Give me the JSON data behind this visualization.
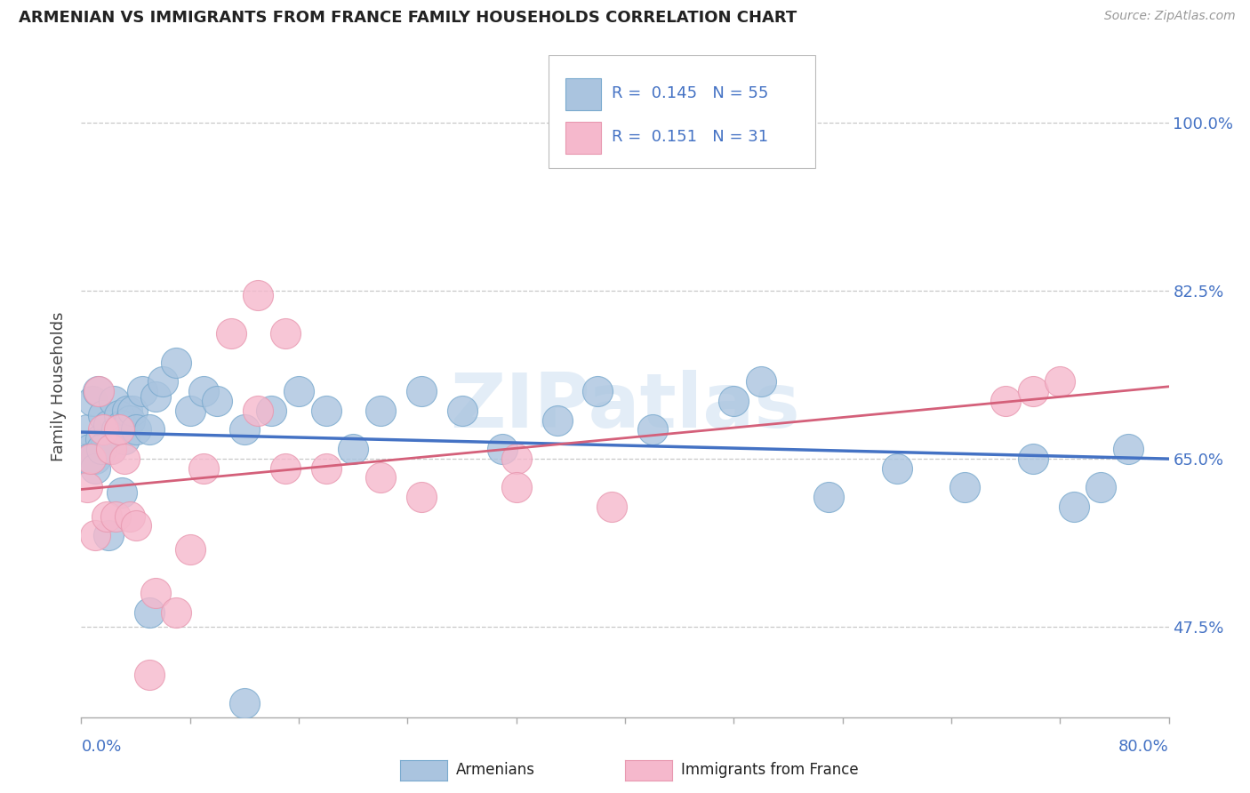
{
  "title": "ARMENIAN VS IMMIGRANTS FROM FRANCE FAMILY HOUSEHOLDS CORRELATION CHART",
  "source": "Source: ZipAtlas.com",
  "ylabel": "Family Households",
  "ytick_values": [
    0.475,
    0.65,
    0.825,
    1.0
  ],
  "ytick_labels": [
    "47.5%",
    "65.0%",
    "82.5%",
    "100.0%"
  ],
  "xlim": [
    0.0,
    0.8
  ],
  "ylim": [
    0.38,
    1.07
  ],
  "bottom_legend1": "Armenians",
  "bottom_legend2": "Immigrants from France",
  "color_arm_fill": "#aac4df",
  "color_arm_edge": "#7aaace",
  "color_fra_fill": "#f5b8cc",
  "color_fra_edge": "#e898b0",
  "color_trendline_arm": "#4472c4",
  "color_trendline_fra": "#d4607a",
  "color_r_n": "#4472c4",
  "color_title": "#222222",
  "color_source": "#999999",
  "color_ylabel": "#444444",
  "color_ytick_right": "#4472c4",
  "color_xtick_label": "#4472c4",
  "color_grid": "#c8c8c8",
  "color_bg": "#ffffff",
  "arm_x": [
    0.004,
    0.006,
    0.008,
    0.01,
    0.012,
    0.014,
    0.016,
    0.018,
    0.02,
    0.022,
    0.024,
    0.026,
    0.028,
    0.03,
    0.032,
    0.034,
    0.036,
    0.038,
    0.04,
    0.045,
    0.05,
    0.055,
    0.06,
    0.07,
    0.08,
    0.09,
    0.1,
    0.12,
    0.14,
    0.16,
    0.18,
    0.2,
    0.22,
    0.25,
    0.28,
    0.31,
    0.35,
    0.38,
    0.42,
    0.48,
    0.5,
    0.55,
    0.6,
    0.65,
    0.7,
    0.73,
    0.75,
    0.77,
    0.005,
    0.01,
    0.015,
    0.02,
    0.03,
    0.05,
    0.12
  ],
  "arm_y": [
    0.68,
    0.66,
    0.71,
    0.65,
    0.72,
    0.67,
    0.695,
    0.665,
    0.685,
    0.66,
    0.71,
    0.68,
    0.695,
    0.685,
    0.67,
    0.7,
    0.69,
    0.7,
    0.68,
    0.72,
    0.68,
    0.715,
    0.73,
    0.75,
    0.7,
    0.72,
    0.71,
    0.68,
    0.7,
    0.72,
    0.7,
    0.66,
    0.7,
    0.72,
    0.7,
    0.66,
    0.69,
    0.72,
    0.68,
    0.71,
    0.73,
    0.61,
    0.64,
    0.62,
    0.65,
    0.6,
    0.62,
    0.66,
    0.65,
    0.64,
    0.66,
    0.57,
    0.615,
    0.49,
    0.395
  ],
  "fra_x": [
    0.004,
    0.007,
    0.01,
    0.013,
    0.016,
    0.019,
    0.022,
    0.025,
    0.028,
    0.032,
    0.036,
    0.04,
    0.055,
    0.07,
    0.09,
    0.11,
    0.13,
    0.15,
    0.18,
    0.22,
    0.25,
    0.13,
    0.15,
    0.32,
    0.32,
    0.39,
    0.68,
    0.7,
    0.72,
    0.05,
    0.08
  ],
  "fra_y": [
    0.62,
    0.65,
    0.57,
    0.72,
    0.68,
    0.59,
    0.66,
    0.59,
    0.68,
    0.65,
    0.59,
    0.58,
    0.51,
    0.49,
    0.64,
    0.78,
    0.7,
    0.64,
    0.64,
    0.63,
    0.61,
    0.82,
    0.78,
    0.65,
    0.62,
    0.6,
    0.71,
    0.72,
    0.73,
    0.425,
    0.555
  ]
}
